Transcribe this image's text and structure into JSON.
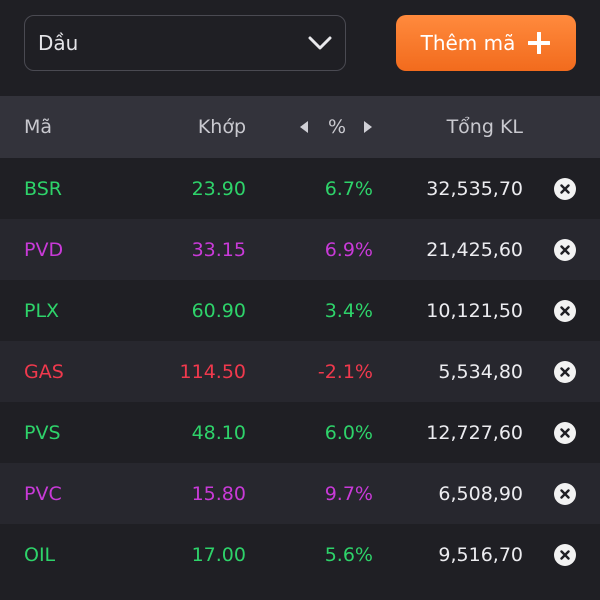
{
  "filter": {
    "selected": "Dầu"
  },
  "add_button": {
    "label": "Thêm mã"
  },
  "table": {
    "headers": {
      "symbol": "Mã",
      "price": "Khớp",
      "percent": "%",
      "volume": "Tổng KL"
    },
    "rows": [
      {
        "symbol": "BSR",
        "price": "23.90",
        "percent": "6.7%",
        "volume": "32,535,70",
        "trend": "up"
      },
      {
        "symbol": "PVD",
        "price": "33.15",
        "percent": "6.9%",
        "volume": "21,425,60",
        "trend": "ceil"
      },
      {
        "symbol": "PLX",
        "price": "60.90",
        "percent": "3.4%",
        "volume": "10,121,50",
        "trend": "up"
      },
      {
        "symbol": "GAS",
        "price": "114.50",
        "percent": "-2.1%",
        "volume": "5,534,80",
        "trend": "down"
      },
      {
        "symbol": "PVS",
        "price": "48.10",
        "percent": "6.0%",
        "volume": "12,727,60",
        "trend": "up"
      },
      {
        "symbol": "PVC",
        "price": "15.80",
        "percent": "9.7%",
        "volume": "6,508,90",
        "trend": "ceil"
      },
      {
        "symbol": "OIL",
        "price": "17.00",
        "percent": "5.6%",
        "volume": "9,516,70",
        "trend": "up"
      }
    ]
  },
  "colors": {
    "up": "#2ed36a",
    "ceil": "#c93ad8",
    "down": "#f0394d",
    "accent": "#f26b1d",
    "background": "#1f1f24",
    "header_background": "#33333b"
  },
  "icons": {
    "dropdown": "chevron-down-icon",
    "add": "plus-icon",
    "sort_left": "caret-left-icon",
    "sort_right": "caret-right-icon",
    "remove": "close-circle-icon"
  }
}
